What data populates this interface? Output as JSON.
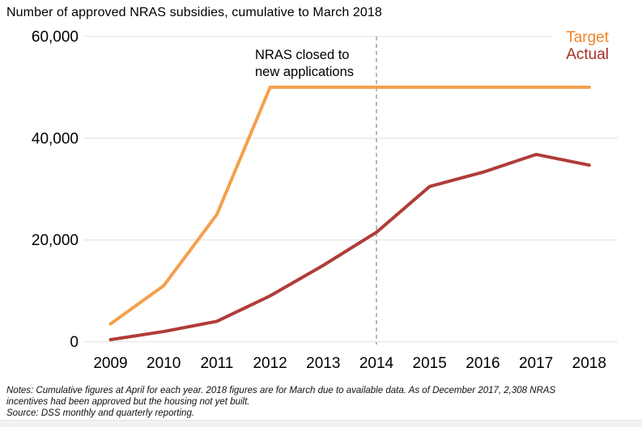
{
  "title": "Number of approved NRAS subsidies, cumulative to March 2018",
  "legend": {
    "target_label": "Target",
    "actual_label": "Actual",
    "target_color": "#ef8526",
    "actual_color": "#a63226"
  },
  "annotation": {
    "text": "NRAS closed to\nnew applications",
    "line_color": "#8a8a8a"
  },
  "notes": "Notes: Cumulative figures at April for each year. 2018 figures are for March due to available data. As of December 2017, 2,308 NRAS\nincentives had been approved but the housing not yet built.",
  "source": "Source: DSS monthly and quarterly reporting.",
  "chart_data": {
    "type": "line",
    "title": "Number of approved NRAS subsidies, cumulative to March 2018",
    "x": [
      2009,
      2010,
      2011,
      2012,
      2013,
      2014,
      2015,
      2016,
      2017,
      2018
    ],
    "x_tick_labels": [
      "2009",
      "2010",
      "2011",
      "2012",
      "2013",
      "2014",
      "2015",
      "2016",
      "2017",
      "2018"
    ],
    "series": [
      {
        "name": "Target",
        "color": "#f4a04c",
        "values": [
          3500,
          11000,
          25000,
          50000,
          50000,
          50000,
          50000,
          50000,
          50000,
          50000
        ]
      },
      {
        "name": "Actual",
        "color": "#b03c38",
        "values": [
          400,
          2000,
          4000,
          9000,
          15000,
          21500,
          30500,
          33300,
          36800,
          34700
        ]
      }
    ],
    "ylim": [
      0,
      60000
    ],
    "yticks": [
      {
        "value": 0,
        "label": "0"
      },
      {
        "value": 20000,
        "label": "20,000"
      },
      {
        "value": 40000,
        "label": "40,000"
      },
      {
        "value": 60000,
        "label": "60,000"
      }
    ],
    "grid": "horizontal-light",
    "grid_color": "#e7e7e7",
    "vline": {
      "x": 2014,
      "style": "dashed",
      "label": "NRAS closed to new applications"
    },
    "legend_position": "top-right",
    "xlabel": "",
    "ylabel": ""
  }
}
